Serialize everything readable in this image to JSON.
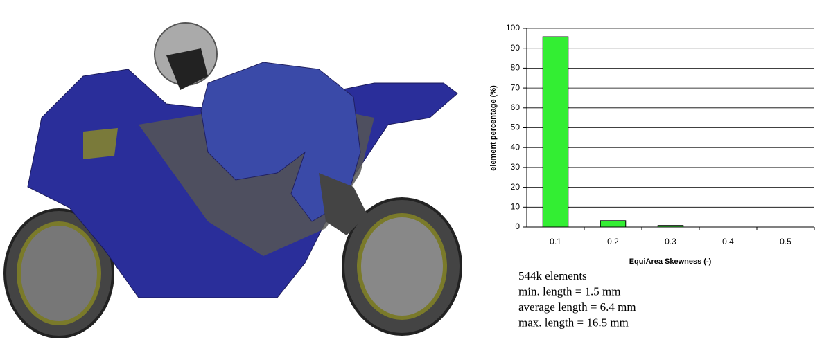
{
  "chart_data": {
    "type": "bar",
    "xlabel": "EquiArea Skewness (-)",
    "ylabel": "element percentage (%)",
    "categories": [
      "0.1",
      "0.2",
      "0.3",
      "0.4",
      "0.5"
    ],
    "values": [
      95.8,
      3.2,
      0.8,
      0,
      0
    ],
    "color": "#33ee33",
    "ylim": [
      0,
      100
    ],
    "yticks": [
      0,
      10,
      20,
      30,
      40,
      50,
      60,
      70,
      80,
      90,
      100
    ],
    "grid": true,
    "annotations": [
      "544k elements",
      "min. length = 1.5 mm",
      "average length = 6.4 mm",
      "max. length = 16.5 mm"
    ]
  }
}
